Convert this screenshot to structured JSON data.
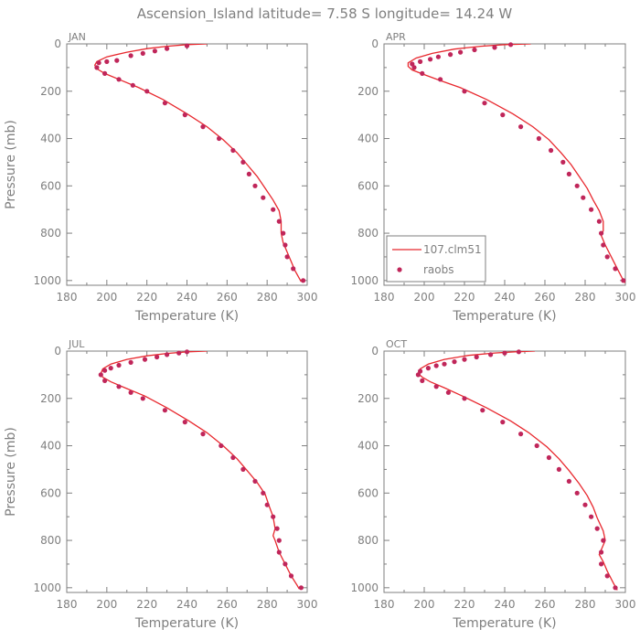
{
  "page_title": "Ascension_Island  latitude= 7.58 S longitude= 14.24 W",
  "colors": {
    "model": "#e8282e",
    "obs": "#c0265a",
    "axis": "#7f7f7f"
  },
  "legend": {
    "model_label": "107.clm51",
    "obs_label": "raobs",
    "placement": "lower-left of APR panel"
  },
  "chart_data": [
    {
      "type": "line",
      "title": "JAN",
      "xlabel": "Temperature (K)",
      "ylabel": "Pressure (mb)",
      "xlim": [
        180,
        300
      ],
      "ylim": [
        1020,
        0
      ],
      "xticks": [
        180,
        200,
        220,
        240,
        260,
        280,
        300
      ],
      "yticks": [
        0,
        200,
        400,
        600,
        800,
        1000
      ],
      "series": [
        {
          "name": "107.clm51",
          "style": "line",
          "points": [
            [
              250,
              0
            ],
            [
              240,
              3
            ],
            [
              230,
              10
            ],
            [
              220,
              20
            ],
            [
              210,
              35
            ],
            [
              200,
              55
            ],
            [
              195,
              75
            ],
            [
              194,
              90
            ],
            [
              195,
              105
            ],
            [
              199,
              125
            ],
            [
              206,
              150
            ],
            [
              216,
              185
            ],
            [
              228,
              235
            ],
            [
              240,
              295
            ],
            [
              250,
              350
            ],
            [
              258,
              405
            ],
            [
              265,
              460
            ],
            [
              270,
              510
            ],
            [
              275,
              560
            ],
            [
              279,
              610
            ],
            [
              283,
              660
            ],
            [
              286,
              705
            ],
            [
              287,
              750
            ],
            [
              287,
              790
            ],
            [
              287,
              800
            ],
            [
              288,
              840
            ],
            [
              290,
              880
            ],
            [
              292,
              920
            ],
            [
              294,
              960
            ],
            [
              296,
              990
            ],
            [
              297,
              1005
            ]
          ]
        },
        {
          "name": "raobs",
          "style": "markers",
          "points": [
            [
              240,
              8
            ],
            [
              230,
              20
            ],
            [
              224,
              30
            ],
            [
              218,
              40
            ],
            [
              212,
              50
            ],
            [
              205,
              70
            ],
            [
              200,
              75
            ],
            [
              196,
              80
            ],
            [
              195,
              100
            ],
            [
              199,
              125
            ],
            [
              206,
              150
            ],
            [
              213,
              175
            ],
            [
              220,
              200
            ],
            [
              229,
              250
            ],
            [
              239,
              300
            ],
            [
              248,
              350
            ],
            [
              256,
              400
            ],
            [
              263,
              450
            ],
            [
              268,
              500
            ],
            [
              271,
              550
            ],
            [
              274,
              600
            ],
            [
              278,
              650
            ],
            [
              283,
              700
            ],
            [
              286,
              750
            ],
            [
              288,
              800
            ],
            [
              289,
              850
            ],
            [
              290,
              900
            ],
            [
              293,
              950
            ],
            [
              298,
              1000
            ]
          ]
        }
      ]
    },
    {
      "type": "line",
      "title": "APR",
      "xlabel": "Temperature (K)",
      "ylabel": "Pressure (mb)",
      "xlim": [
        180,
        300
      ],
      "ylim": [
        1020,
        0
      ],
      "xticks": [
        180,
        200,
        220,
        240,
        260,
        280,
        300
      ],
      "yticks": [
        0,
        200,
        400,
        600,
        800,
        1000
      ],
      "series": [
        {
          "name": "107.clm51",
          "style": "line",
          "points": [
            [
              253,
              0
            ],
            [
              240,
              3
            ],
            [
              228,
              10
            ],
            [
              215,
              22
            ],
            [
              204,
              40
            ],
            [
              196,
              60
            ],
            [
              192,
              80
            ],
            [
              192,
              95
            ],
            [
              194,
              110
            ],
            [
              200,
              130
            ],
            [
              208,
              155
            ],
            [
              218,
              185
            ],
            [
              231,
              235
            ],
            [
              244,
              295
            ],
            [
              254,
              350
            ],
            [
              262,
              405
            ],
            [
              268,
              460
            ],
            [
              273,
              510
            ],
            [
              277,
              560
            ],
            [
              281,
              610
            ],
            [
              284,
              660
            ],
            [
              287,
              705
            ],
            [
              289,
              750
            ],
            [
              289,
              790
            ],
            [
              288,
              810
            ],
            [
              290,
              850
            ],
            [
              293,
              900
            ],
            [
              296,
              950
            ],
            [
              299,
              1000
            ],
            [
              300,
              1010
            ]
          ]
        },
        {
          "name": "raobs",
          "style": "markers",
          "points": [
            [
              243,
              3
            ],
            [
              235,
              15
            ],
            [
              225,
              25
            ],
            [
              218,
              35
            ],
            [
              213,
              45
            ],
            [
              207,
              55
            ],
            [
              203,
              65
            ],
            [
              198,
              75
            ],
            [
              194,
              85
            ],
            [
              195,
              100
            ],
            [
              199,
              125
            ],
            [
              208,
              150
            ],
            [
              220,
              200
            ],
            [
              230,
              250
            ],
            [
              239,
              300
            ],
            [
              248,
              350
            ],
            [
              257,
              400
            ],
            [
              263,
              450
            ],
            [
              269,
              500
            ],
            [
              272,
              550
            ],
            [
              276,
              600
            ],
            [
              279,
              650
            ],
            [
              283,
              700
            ],
            [
              287,
              750
            ],
            [
              288,
              800
            ],
            [
              289,
              850
            ],
            [
              291,
              900
            ],
            [
              295,
              950
            ],
            [
              299,
              1000
            ]
          ]
        }
      ]
    },
    {
      "type": "line",
      "title": "JUL",
      "xlabel": "Temperature (K)",
      "ylabel": "Pressure (mb)",
      "xlim": [
        180,
        300
      ],
      "ylim": [
        1020,
        0
      ],
      "xticks": [
        180,
        200,
        220,
        240,
        260,
        280,
        300
      ],
      "yticks": [
        0,
        200,
        400,
        600,
        800,
        1000
      ],
      "series": [
        {
          "name": "107.clm51",
          "style": "line",
          "points": [
            [
              250,
              0
            ],
            [
              240,
              3
            ],
            [
              230,
              10
            ],
            [
              220,
              20
            ],
            [
              210,
              35
            ],
            [
              202,
              55
            ],
            [
              198,
              75
            ],
            [
              197,
              95
            ],
            [
              198,
              110
            ],
            [
              202,
              130
            ],
            [
              209,
              155
            ],
            [
              219,
              190
            ],
            [
              230,
              240
            ],
            [
              241,
              295
            ],
            [
              250,
              345
            ],
            [
              258,
              400
            ],
            [
              265,
              455
            ],
            [
              270,
              505
            ],
            [
              275,
              555
            ],
            [
              279,
              605
            ],
            [
              281,
              655
            ],
            [
              283,
              700
            ],
            [
              284,
              750
            ],
            [
              283,
              780
            ],
            [
              284,
              800
            ],
            [
              286,
              850
            ],
            [
              289,
              900
            ],
            [
              292,
              950
            ],
            [
              295,
              990
            ],
            [
              296,
              1005
            ]
          ]
        },
        {
          "name": "raobs",
          "style": "markers",
          "points": [
            [
              240,
              3
            ],
            [
              236,
              8
            ],
            [
              230,
              15
            ],
            [
              225,
              25
            ],
            [
              219,
              35
            ],
            [
              212,
              48
            ],
            [
              206,
              60
            ],
            [
              202,
              72
            ],
            [
              199,
              82
            ],
            [
              197,
              100
            ],
            [
              199,
              125
            ],
            [
              206,
              150
            ],
            [
              212,
              175
            ],
            [
              218,
              200
            ],
            [
              229,
              250
            ],
            [
              239,
              300
            ],
            [
              248,
              350
            ],
            [
              257,
              400
            ],
            [
              263,
              450
            ],
            [
              268,
              500
            ],
            [
              274,
              550
            ],
            [
              278,
              600
            ],
            [
              280,
              650
            ],
            [
              283,
              700
            ],
            [
              285,
              750
            ],
            [
              286,
              800
            ],
            [
              286,
              850
            ],
            [
              289,
              900
            ],
            [
              292,
              950
            ],
            [
              297,
              1000
            ]
          ]
        }
      ]
    },
    {
      "type": "line",
      "title": "OCT",
      "xlabel": "Temperature (K)",
      "ylabel": "Pressure (mb)",
      "xlim": [
        180,
        300
      ],
      "ylim": [
        1020,
        0
      ],
      "xticks": [
        180,
        200,
        220,
        240,
        260,
        280,
        300
      ],
      "yticks": [
        0,
        200,
        400,
        600,
        800,
        1000
      ],
      "series": [
        {
          "name": "107.clm51",
          "style": "line",
          "points": [
            [
              255,
              0
            ],
            [
              245,
              3
            ],
            [
              235,
              8
            ],
            [
              222,
              18
            ],
            [
              210,
              35
            ],
            [
              202,
              55
            ],
            [
              198,
              75
            ],
            [
              197,
              95
            ],
            [
              199,
              110
            ],
            [
              203,
              130
            ],
            [
              210,
              155
            ],
            [
              219,
              190
            ],
            [
              231,
              240
            ],
            [
              243,
              295
            ],
            [
              252,
              345
            ],
            [
              261,
              405
            ],
            [
              267,
              455
            ],
            [
              272,
              505
            ],
            [
              277,
              560
            ],
            [
              281,
              610
            ],
            [
              284,
              660
            ],
            [
              286,
              705
            ],
            [
              289,
              760
            ],
            [
              290,
              800
            ],
            [
              288,
              840
            ],
            [
              287,
              860
            ],
            [
              289,
              890
            ],
            [
              291,
              930
            ],
            [
              294,
              980
            ],
            [
              296,
              1010
            ]
          ]
        },
        {
          "name": "raobs",
          "style": "markers",
          "points": [
            [
              247,
              3
            ],
            [
              240,
              8
            ],
            [
              233,
              15
            ],
            [
              226,
              25
            ],
            [
              220,
              35
            ],
            [
              215,
              45
            ],
            [
              210,
              55
            ],
            [
              206,
              62
            ],
            [
              202,
              72
            ],
            [
              198,
              85
            ],
            [
              197,
              100
            ],
            [
              199,
              125
            ],
            [
              206,
              150
            ],
            [
              212,
              175
            ],
            [
              220,
              200
            ],
            [
              229,
              250
            ],
            [
              239,
              300
            ],
            [
              248,
              350
            ],
            [
              256,
              400
            ],
            [
              262,
              450
            ],
            [
              267,
              500
            ],
            [
              272,
              550
            ],
            [
              276,
              600
            ],
            [
              280,
              650
            ],
            [
              283,
              700
            ],
            [
              286,
              750
            ],
            [
              289,
              800
            ],
            [
              288,
              850
            ],
            [
              288,
              900
            ],
            [
              291,
              950
            ],
            [
              295,
              1000
            ]
          ]
        }
      ]
    }
  ]
}
